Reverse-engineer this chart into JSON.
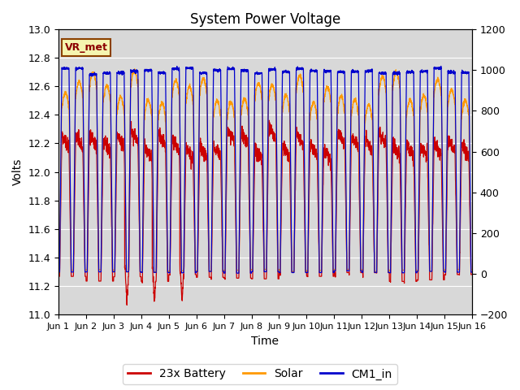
{
  "title": "System Power Voltage",
  "xlabel": "Time",
  "ylabel": "Volts",
  "ylim_left": [
    11.0,
    13.0
  ],
  "ylim_right": [
    -200,
    1200
  ],
  "yticks_left": [
    11.0,
    11.2,
    11.4,
    11.6,
    11.8,
    12.0,
    12.2,
    12.4,
    12.6,
    12.8,
    13.0
  ],
  "yticks_right": [
    -200,
    0,
    200,
    400,
    600,
    800,
    1000,
    1200
  ],
  "xtick_labels": [
    "Jun 1",
    "Jun 2",
    "Jun 3",
    "Jun 4",
    "Jun 5",
    "Jun 6",
    "Jun 7",
    "Jun 8",
    "Jun 9",
    "Jun 10",
    "Jun 11",
    "Jun 12",
    "Jun 13",
    "Jun 14",
    "Jun 15",
    "Jun 16"
  ],
  "bg_color": "#d8d8d8",
  "annotation_text": "VR_met",
  "annotation_color": "#8b0000",
  "annotation_bg": "#f5f5b0",
  "annotation_border": "#8b4000",
  "line_colors": {
    "battery": "#cc0000",
    "solar": "#ff9900",
    "cm1": "#0000cc"
  },
  "legend_labels": [
    "23x Battery",
    "Solar",
    "CM1_in"
  ]
}
